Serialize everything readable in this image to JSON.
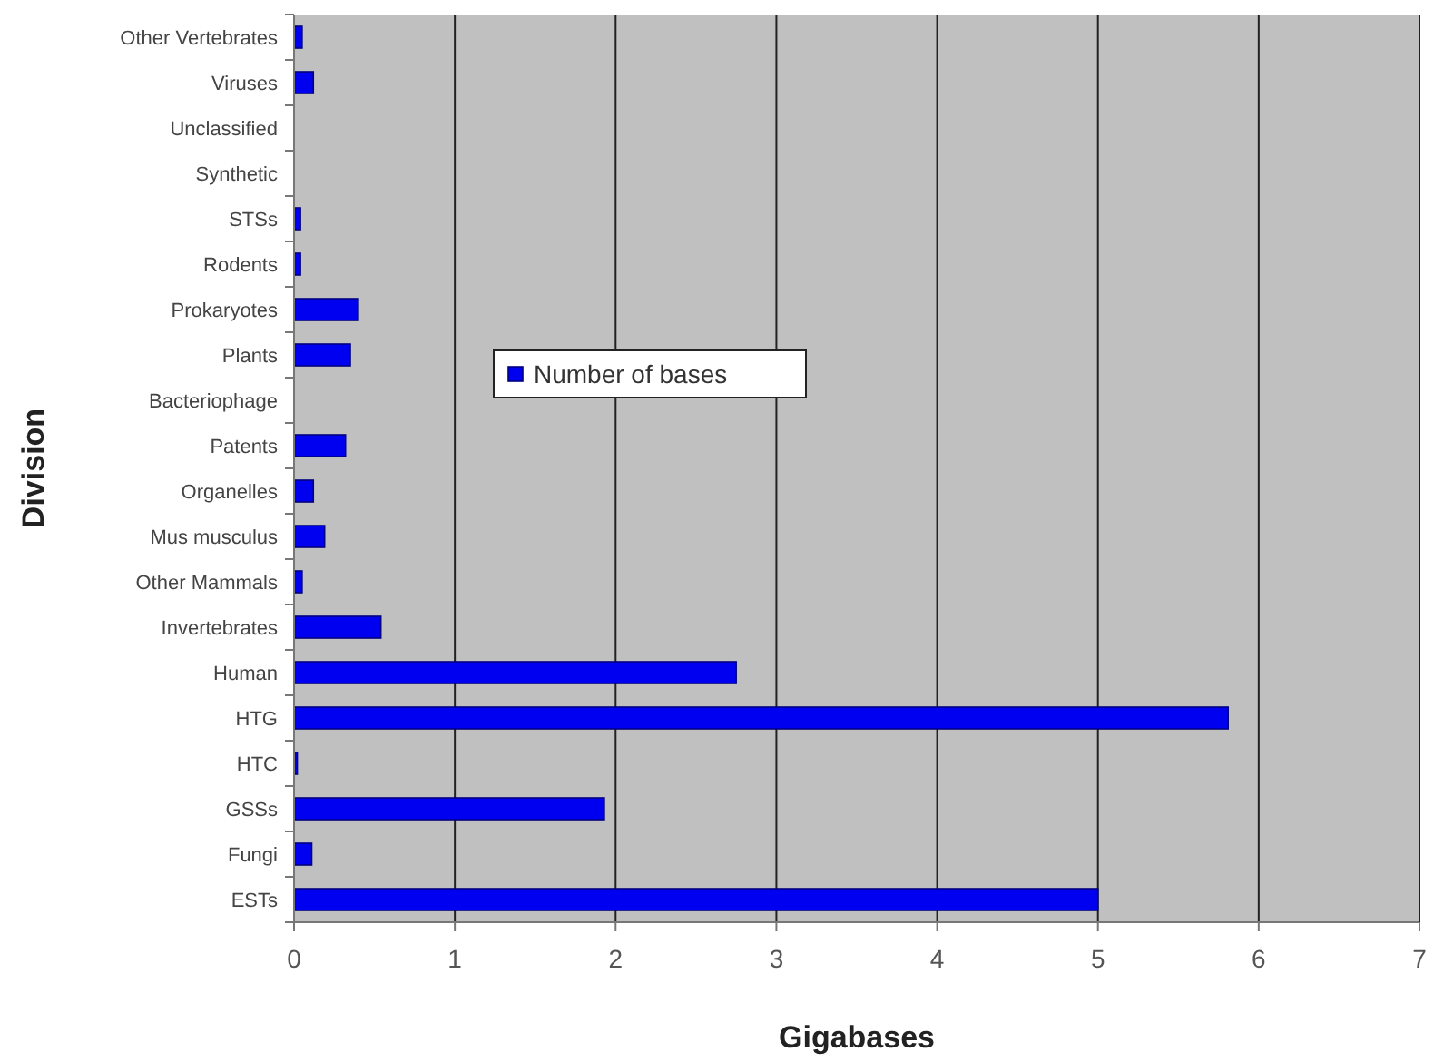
{
  "chart_data": {
    "type": "bar",
    "orientation": "horizontal",
    "xlabel": "Gigabases",
    "ylabel": "Division",
    "categories": [
      "Other Vertebrates",
      "Viruses",
      "Unclassified",
      "Synthetic",
      "STSs",
      "Rodents",
      "Prokaryotes",
      "Plants",
      "Bacteriophage",
      "Patents",
      "Organelles",
      "Mus musculus",
      "Other Mammals",
      "Invertebrates",
      "Human",
      "HTG",
      "HTC",
      "GSSs",
      "Fungi",
      "ESTs"
    ],
    "series": [
      {
        "name": "Number of bases",
        "color": "#0000f0",
        "values": [
          0.05,
          0.12,
          0,
          0,
          0.04,
          0.04,
          0.4,
          0.35,
          0,
          0.32,
          0.12,
          0.19,
          0.05,
          0.54,
          2.75,
          5.81,
          0.02,
          1.93,
          0.11,
          5.0
        ]
      }
    ],
    "xlim": [
      0,
      7
    ],
    "xticks": [
      0,
      1,
      2,
      3,
      4,
      5,
      6,
      7
    ],
    "grid": "x",
    "legend": "left"
  }
}
